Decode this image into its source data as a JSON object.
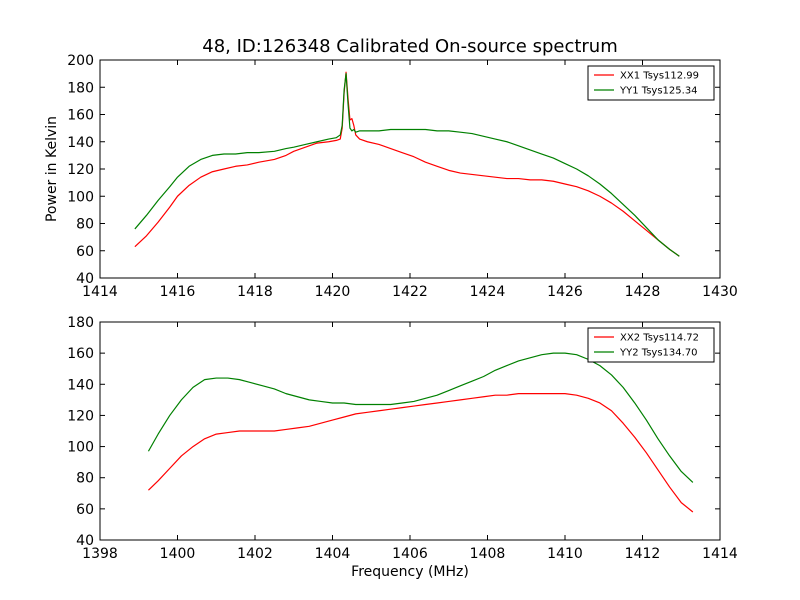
{
  "chart_data": [
    {
      "type": "line",
      "title": "48, ID:126348 Calibrated On-source spectrum",
      "xlabel": "",
      "ylabel": "Power in Kelvin",
      "xlim": [
        1414,
        1430
      ],
      "ylim": [
        40,
        200
      ],
      "xticks": [
        "1414",
        "1416",
        "1418",
        "1420",
        "1422",
        "1424",
        "1426",
        "1428",
        "1430"
      ],
      "yticks": [
        "40",
        "60",
        "80",
        "100",
        "120",
        "140",
        "160",
        "180",
        "200"
      ],
      "grid": false,
      "legend": "top-right",
      "series": [
        {
          "name": "XX1 Tsys112.99",
          "color": "#ff0000",
          "x": [
            1414.9,
            1415.2,
            1415.5,
            1415.8,
            1416.0,
            1416.3,
            1416.6,
            1416.9,
            1417.2,
            1417.5,
            1417.8,
            1418.1,
            1418.5,
            1418.8,
            1419.0,
            1419.3,
            1419.6,
            1419.9,
            1420.1,
            1420.2,
            1420.25,
            1420.3,
            1420.35,
            1420.4,
            1420.45,
            1420.5,
            1420.55,
            1420.6,
            1420.7,
            1420.9,
            1421.2,
            1421.5,
            1421.8,
            1422.1,
            1422.4,
            1422.7,
            1423.0,
            1423.3,
            1423.6,
            1423.9,
            1424.2,
            1424.5,
            1424.8,
            1425.1,
            1425.4,
            1425.7,
            1426.0,
            1426.3,
            1426.6,
            1426.9,
            1427.2,
            1427.5,
            1427.8,
            1428.1,
            1428.4,
            1428.7,
            1428.95
          ],
          "values": [
            63,
            71,
            81,
            92,
            100,
            108,
            114,
            118,
            120,
            122,
            123,
            125,
            127,
            130,
            133,
            136,
            139,
            140,
            141,
            142,
            150,
            176,
            191,
            172,
            156,
            157,
            152,
            145,
            142,
            140,
            138,
            135,
            132,
            129,
            125,
            122,
            119,
            117,
            116,
            115,
            114,
            113,
            113,
            112,
            112,
            111,
            109,
            107,
            104,
            100,
            95,
            89,
            82,
            75,
            68,
            61,
            56
          ]
        },
        {
          "name": "YY1 Tsys125.34",
          "color": "#008000",
          "x": [
            1414.9,
            1415.2,
            1415.5,
            1415.8,
            1416.0,
            1416.3,
            1416.6,
            1416.9,
            1417.2,
            1417.5,
            1417.8,
            1418.1,
            1418.5,
            1418.8,
            1419.0,
            1419.3,
            1419.6,
            1419.9,
            1420.1,
            1420.2,
            1420.25,
            1420.3,
            1420.35,
            1420.4,
            1420.45,
            1420.5,
            1420.55,
            1420.6,
            1420.7,
            1420.9,
            1421.2,
            1421.5,
            1421.8,
            1422.1,
            1422.4,
            1422.7,
            1423.0,
            1423.3,
            1423.6,
            1423.9,
            1424.2,
            1424.5,
            1424.8,
            1425.1,
            1425.4,
            1425.7,
            1426.0,
            1426.3,
            1426.6,
            1426.9,
            1427.2,
            1427.5,
            1427.8,
            1428.1,
            1428.4,
            1428.7,
            1428.95
          ],
          "values": [
            76,
            86,
            97,
            107,
            114,
            122,
            127,
            130,
            131,
            131,
            132,
            132,
            133,
            135,
            136,
            138,
            140,
            142,
            143,
            145,
            152,
            178,
            190,
            168,
            150,
            148,
            149,
            147,
            148,
            148,
            148,
            149,
            149,
            149,
            149,
            148,
            148,
            147,
            146,
            144,
            142,
            140,
            137,
            134,
            131,
            128,
            124,
            120,
            115,
            109,
            102,
            94,
            86,
            77,
            68,
            61,
            56
          ]
        }
      ]
    },
    {
      "type": "line",
      "title": "",
      "xlabel": "Frequency (MHz)",
      "ylabel": "",
      "xlim": [
        1398,
        1414
      ],
      "ylim": [
        40,
        180
      ],
      "xticks": [
        "1398",
        "1400",
        "1402",
        "1404",
        "1406",
        "1408",
        "1410",
        "1412",
        "1414"
      ],
      "yticks": [
        "40",
        "60",
        "80",
        "100",
        "120",
        "140",
        "160",
        "180"
      ],
      "grid": false,
      "legend": "top-right",
      "series": [
        {
          "name": "XX2 Tsys114.72",
          "color": "#ff0000",
          "x": [
            1399.25,
            1399.5,
            1399.8,
            1400.1,
            1400.4,
            1400.7,
            1401.0,
            1401.3,
            1401.6,
            1401.9,
            1402.2,
            1402.5,
            1402.8,
            1403.1,
            1403.4,
            1403.7,
            1404.0,
            1404.3,
            1404.6,
            1404.9,
            1405.2,
            1405.5,
            1405.8,
            1406.1,
            1406.4,
            1406.7,
            1407.0,
            1407.3,
            1407.6,
            1407.9,
            1408.2,
            1408.5,
            1408.8,
            1409.1,
            1409.4,
            1409.7,
            1410.0,
            1410.3,
            1410.6,
            1410.9,
            1411.2,
            1411.5,
            1411.8,
            1412.1,
            1412.4,
            1412.7,
            1413.0,
            1413.3
          ],
          "values": [
            72,
            78,
            86,
            94,
            100,
            105,
            108,
            109,
            110,
            110,
            110,
            110,
            111,
            112,
            113,
            115,
            117,
            119,
            121,
            122,
            123,
            124,
            125,
            126,
            127,
            128,
            129,
            130,
            131,
            132,
            133,
            133,
            134,
            134,
            134,
            134,
            134,
            133,
            131,
            128,
            123,
            115,
            106,
            96,
            85,
            74,
            64,
            58
          ]
        },
        {
          "name": "YY2 Tsys134.70",
          "color": "#008000",
          "x": [
            1399.25,
            1399.5,
            1399.8,
            1400.1,
            1400.4,
            1400.7,
            1401.0,
            1401.3,
            1401.6,
            1401.9,
            1402.2,
            1402.5,
            1402.8,
            1403.1,
            1403.4,
            1403.7,
            1404.0,
            1404.3,
            1404.6,
            1404.9,
            1405.2,
            1405.5,
            1405.8,
            1406.1,
            1406.4,
            1406.7,
            1407.0,
            1407.3,
            1407.6,
            1407.9,
            1408.2,
            1408.5,
            1408.8,
            1409.1,
            1409.4,
            1409.7,
            1410.0,
            1410.3,
            1410.6,
            1410.9,
            1411.2,
            1411.5,
            1411.8,
            1412.1,
            1412.4,
            1412.7,
            1413.0,
            1413.3
          ],
          "values": [
            97,
            108,
            120,
            130,
            138,
            143,
            144,
            144,
            143,
            141,
            139,
            137,
            134,
            132,
            130,
            129,
            128,
            128,
            127,
            127,
            127,
            127,
            128,
            129,
            131,
            133,
            136,
            139,
            142,
            145,
            149,
            152,
            155,
            157,
            159,
            160,
            160,
            159,
            156,
            152,
            146,
            138,
            128,
            117,
            105,
            94,
            84,
            77
          ]
        }
      ]
    }
  ]
}
